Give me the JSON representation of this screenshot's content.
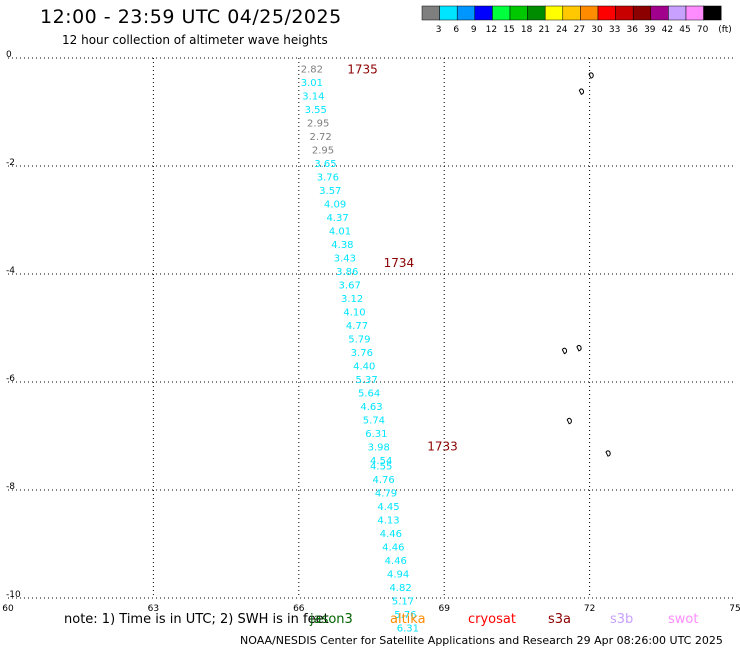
{
  "header": {
    "title": "12:00 - 23:59 UTC 04/25/2025",
    "subtitle": "12 hour collection of altimeter wave heights"
  },
  "legend": {
    "unit": "(ft)",
    "bins": [
      {
        "label": "3",
        "color": "#7f7f7f"
      },
      {
        "label": "6",
        "color": "#00e5ff"
      },
      {
        "label": "9",
        "color": "#0096ff"
      },
      {
        "label": "12",
        "color": "#0000ff"
      },
      {
        "label": "15",
        "color": "#00ff3c"
      },
      {
        "label": "18",
        "color": "#00c800"
      },
      {
        "label": "21",
        "color": "#008c00"
      },
      {
        "label": "24",
        "color": "#ffff00"
      },
      {
        "label": "27",
        "color": "#ffc800"
      },
      {
        "label": "30",
        "color": "#ff8c00"
      },
      {
        "label": "33",
        "color": "#ff0000"
      },
      {
        "label": "36",
        "color": "#c80000"
      },
      {
        "label": "39",
        "color": "#8c0000"
      },
      {
        "label": "42",
        "color": "#a0008c"
      },
      {
        "label": "45",
        "color": "#c8a0ff"
      },
      {
        "label": "70",
        "color": "#ff8cff"
      },
      {
        "label": "",
        "color": "#000000"
      }
    ]
  },
  "axes": {
    "x_ticks": [
      "60",
      "63",
      "66",
      "69",
      "72",
      "75"
    ],
    "y_ticks": [
      "0",
      "-2",
      "-4",
      "-6",
      "-8",
      "-10"
    ]
  },
  "time_labels": [
    {
      "text": "1735",
      "lon": 67.0,
      "lat": -0.12
    },
    {
      "text": "1734",
      "lon": 67.75,
      "lat": -3.7
    },
    {
      "text": "1733",
      "lon": 68.65,
      "lat": -7.1
    }
  ],
  "track": [
    {
      "v": "2.82",
      "lon": 66.27,
      "lat": -0.1
    },
    {
      "v": "3.01",
      "lon": 66.27,
      "lat": -0.35
    },
    {
      "v": "3.14",
      "lon": 66.3,
      "lat": -0.6
    },
    {
      "v": "3.55",
      "lon": 66.35,
      "lat": -0.85
    },
    {
      "v": "2.95",
      "lon": 66.4,
      "lat": -1.1
    },
    {
      "v": "2.72",
      "lon": 66.45,
      "lat": -1.35
    },
    {
      "v": "2.95",
      "lon": 66.5,
      "lat": -1.6
    },
    {
      "v": "3.65",
      "lon": 66.55,
      "lat": -1.85
    },
    {
      "v": "3.76",
      "lon": 66.6,
      "lat": -2.1
    },
    {
      "v": "3.57",
      "lon": 66.65,
      "lat": -2.35
    },
    {
      "v": "4.09",
      "lon": 66.75,
      "lat": -2.6
    },
    {
      "v": "4.37",
      "lon": 66.8,
      "lat": -2.85
    },
    {
      "v": "4.01",
      "lon": 66.85,
      "lat": -3.1
    },
    {
      "v": "4.38",
      "lon": 66.9,
      "lat": -3.35
    },
    {
      "v": "3.43",
      "lon": 66.95,
      "lat": -3.6
    },
    {
      "v": "3.86",
      "lon": 67.0,
      "lat": -3.85
    },
    {
      "v": "3.67",
      "lon": 67.05,
      "lat": -4.1
    },
    {
      "v": "3.12",
      "lon": 67.1,
      "lat": -4.35
    },
    {
      "v": "4.10",
      "lon": 67.15,
      "lat": -4.6
    },
    {
      "v": "4.77",
      "lon": 67.2,
      "lat": -4.85
    },
    {
      "v": "5.79",
      "lon": 67.25,
      "lat": -5.1
    },
    {
      "v": "3.76",
      "lon": 67.3,
      "lat": -5.35
    },
    {
      "v": "4.40",
      "lon": 67.35,
      "lat": -5.6
    },
    {
      "v": "5.37",
      "lon": 67.4,
      "lat": -5.85
    },
    {
      "v": "5.64",
      "lon": 67.45,
      "lat": -6.1
    },
    {
      "v": "4.63",
      "lon": 67.5,
      "lat": -6.35
    },
    {
      "v": "5.74",
      "lon": 67.55,
      "lat": -6.6
    },
    {
      "v": "6.31",
      "lon": 67.6,
      "lat": -6.85
    },
    {
      "v": "3.98",
      "lon": 67.65,
      "lat": -7.1
    },
    {
      "v": "4.54",
      "lon": 67.7,
      "lat": -7.35
    },
    {
      "v": "4.55",
      "lon": 67.7,
      "lat": -7.45
    },
    {
      "v": "4.76",
      "lon": 67.75,
      "lat": -7.7
    },
    {
      "v": "4.79",
      "lon": 67.8,
      "lat": -7.95
    },
    {
      "v": "4.45",
      "lon": 67.85,
      "lat": -8.2
    },
    {
      "v": "4.13",
      "lon": 67.85,
      "lat": -8.45
    },
    {
      "v": "4.46",
      "lon": 67.9,
      "lat": -8.7
    },
    {
      "v": "4.46",
      "lon": 67.95,
      "lat": -8.95
    },
    {
      "v": "4.46",
      "lon": 68.0,
      "lat": -9.2
    },
    {
      "v": "4.94",
      "lon": 68.05,
      "lat": -9.45
    },
    {
      "v": "4.82",
      "lon": 68.1,
      "lat": -9.7
    },
    {
      "v": "5.17",
      "lon": 68.15,
      "lat": -9.95
    },
    {
      "v": "5.76",
      "lon": 68.2,
      "lat": -10.2
    },
    {
      "v": "6.31",
      "lon": 68.25,
      "lat": -10.45
    }
  ],
  "islands": [
    {
      "name": "island-a",
      "lon": 72.05,
      "lat": -0.3
    },
    {
      "name": "island-b",
      "lon": 71.85,
      "lat": -0.6
    },
    {
      "name": "island-c",
      "lon": 71.5,
      "lat": -5.4
    },
    {
      "name": "island-d",
      "lon": 71.8,
      "lat": -5.35
    },
    {
      "name": "island-e",
      "lon": 71.6,
      "lat": -6.7
    },
    {
      "name": "island-f",
      "lon": 72.4,
      "lat": -7.3
    }
  ],
  "footer": {
    "note": "note: 1) Time is in UTC; 2) SWH is in feet",
    "satellites": [
      {
        "name": "jason3",
        "color": "#006400"
      },
      {
        "name": "altika",
        "color": "#ff8c00"
      },
      {
        "name": "cryosat",
        "color": "#ff0000"
      },
      {
        "name": "s3a",
        "color": "#8c0000"
      },
      {
        "name": "s3b",
        "color": "#c8a0ff"
      },
      {
        "name": "swot",
        "color": "#ff8cff"
      }
    ],
    "credit": "NOAA/NESDIS Center for Satellite Applications and Research    29 Apr 08:26:00 UTC 2025"
  },
  "colors": {
    "track_low": "#00e5ff",
    "track_gray": "#7f7f7f",
    "time_label": "#8c0000"
  }
}
